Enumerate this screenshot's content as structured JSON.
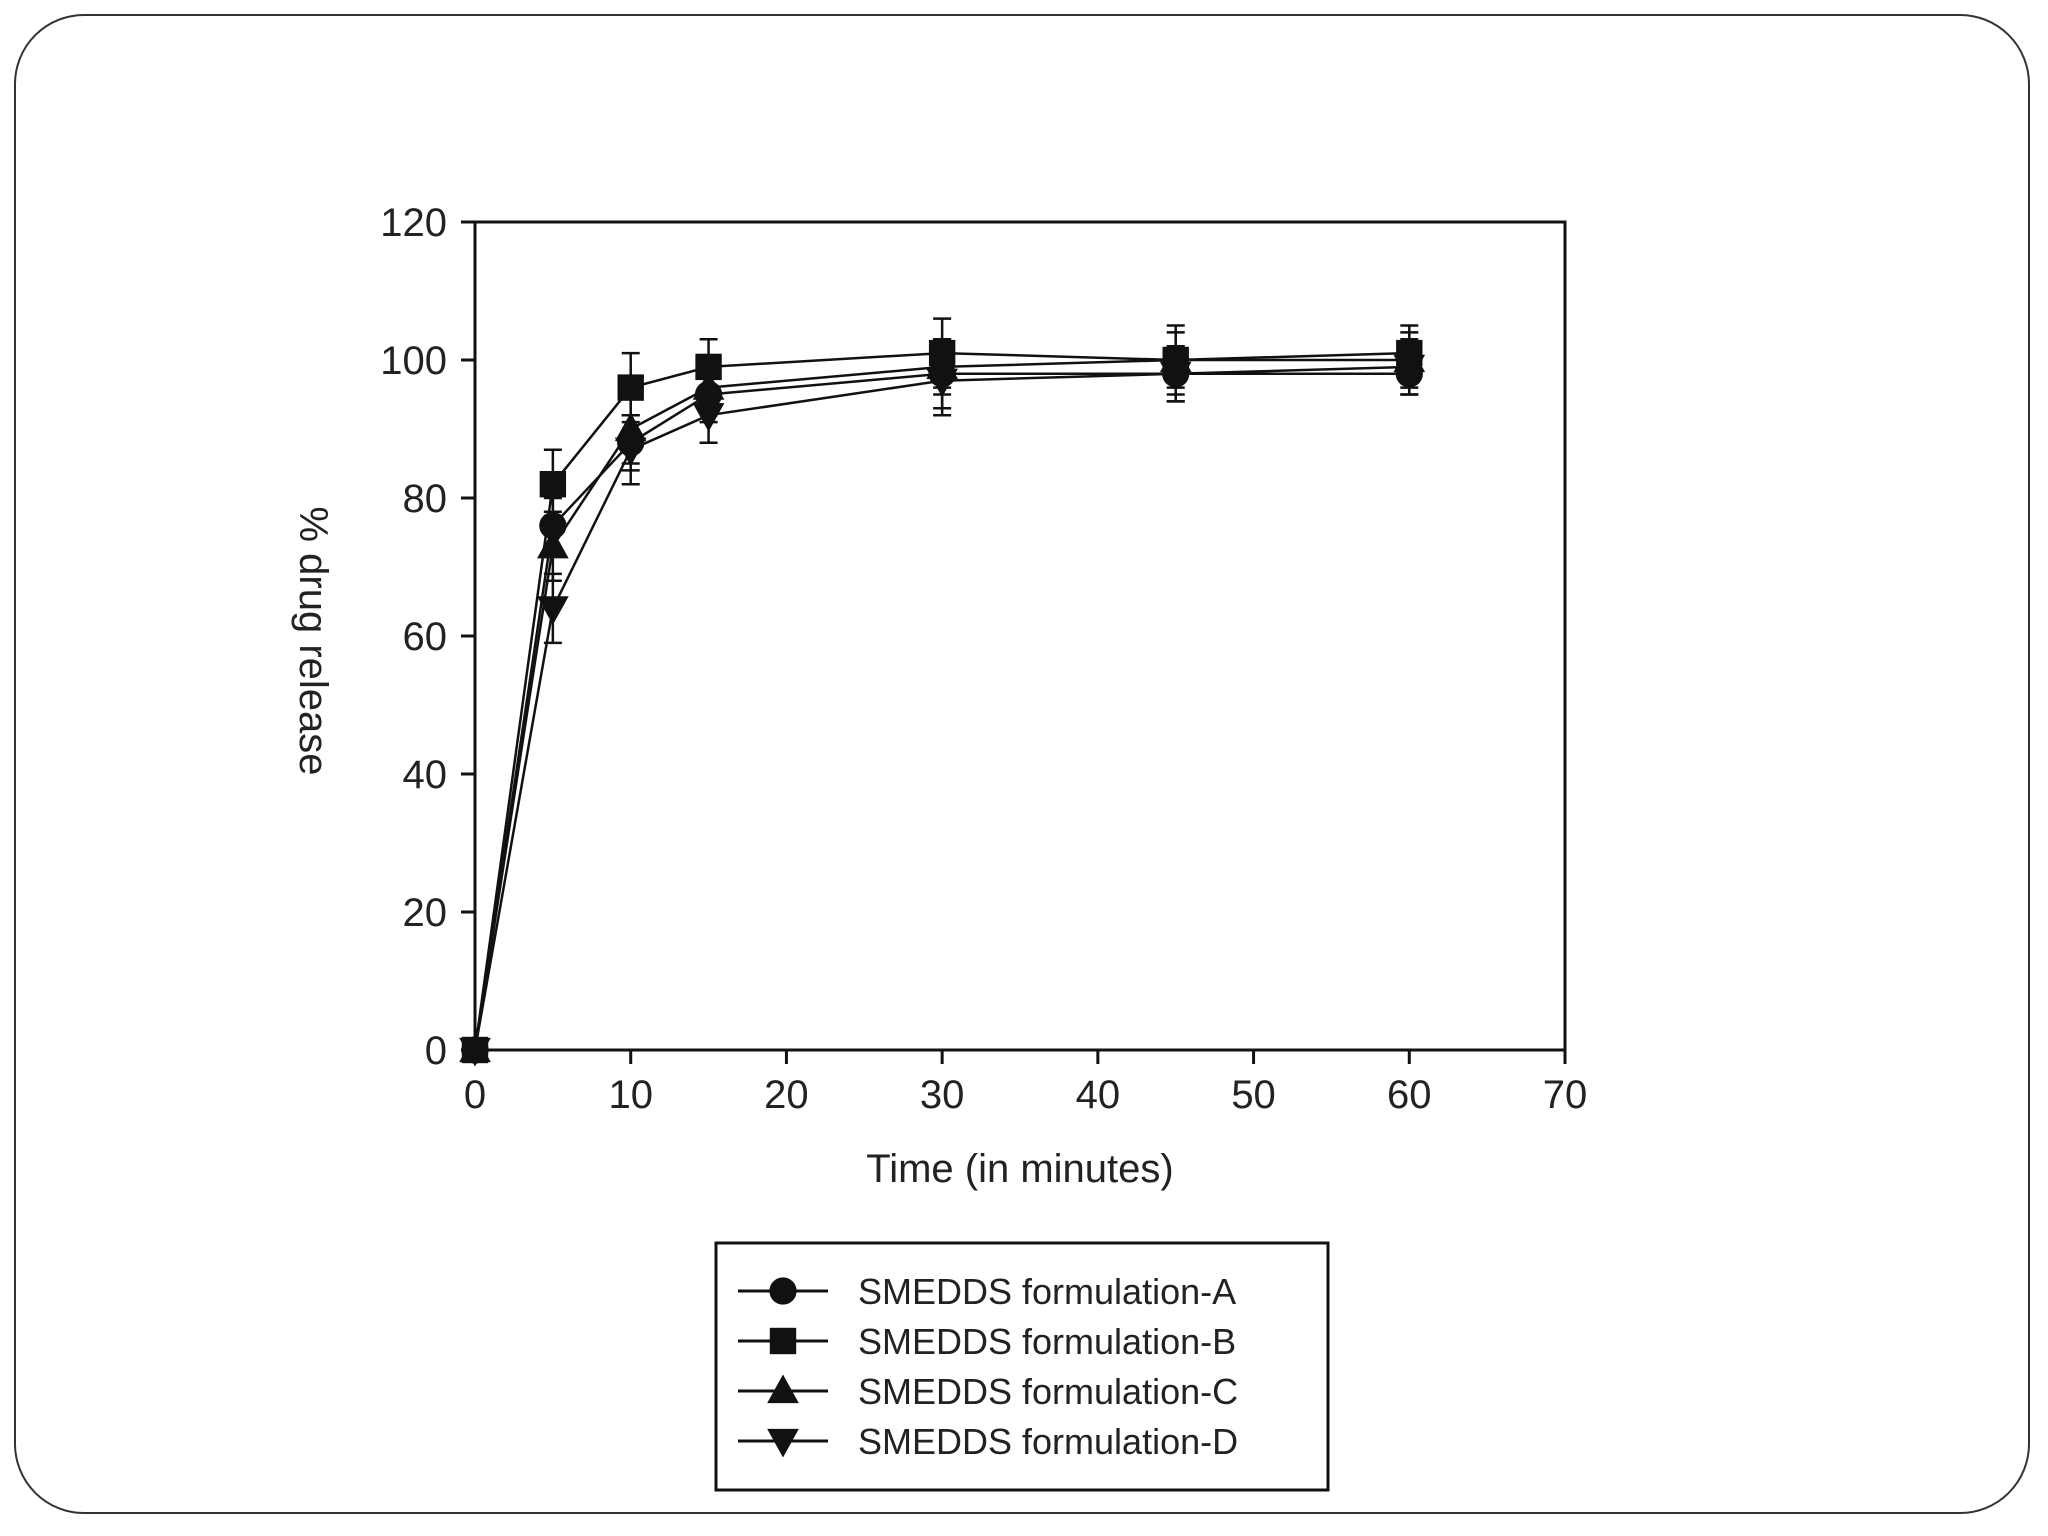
{
  "chart_data": {
    "type": "line",
    "title": "",
    "xlabel": "Time (in minutes)",
    "ylabel": "% drug release",
    "xlim": [
      0,
      70
    ],
    "ylim": [
      0,
      120
    ],
    "xticks": [
      0,
      10,
      20,
      30,
      40,
      50,
      60,
      70
    ],
    "yticks": [
      0,
      20,
      40,
      60,
      80,
      100,
      120
    ],
    "x": [
      0,
      5,
      10,
      15,
      30,
      45,
      60
    ],
    "grid": false,
    "legend_position": "bottom-center",
    "series": [
      {
        "name": "SMEDDS formulation-A",
        "marker": "circle",
        "values": [
          0,
          76,
          88,
          95,
          98,
          98,
          98
        ],
        "errors": [
          0,
          4,
          4,
          4,
          5,
          4,
          3
        ]
      },
      {
        "name": "SMEDDS formulation-B",
        "marker": "square",
        "values": [
          0,
          82,
          96,
          99,
          101,
          100,
          101
        ],
        "errors": [
          0,
          5,
          5,
          4,
          5,
          5,
          4
        ]
      },
      {
        "name": "SMEDDS formulation-C",
        "marker": "triangle-up",
        "values": [
          0,
          73,
          90,
          96,
          99,
          100,
          100
        ],
        "errors": [
          0,
          5,
          5,
          4,
          4,
          4,
          4
        ]
      },
      {
        "name": "SMEDDS formulation-D",
        "marker": "triangle-down",
        "values": [
          0,
          64,
          87,
          92,
          97,
          98,
          99
        ],
        "errors": [
          0,
          5,
          5,
          4,
          5,
          4,
          4
        ]
      }
    ],
    "colors": {
      "line": "#111111",
      "marker": "#111111",
      "text": "#222222"
    }
  }
}
